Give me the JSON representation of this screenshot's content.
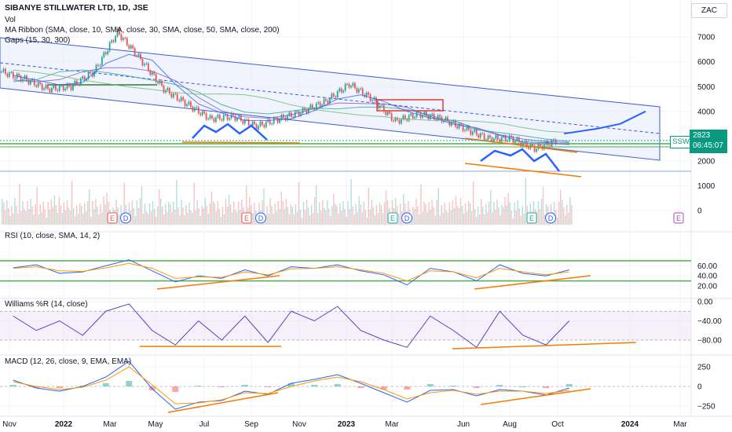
{
  "header": {
    "title": "SIBANYE STILLWATER LTD, 1D, JSE",
    "vol_label": "Vol",
    "ma_label": "MA Ribbon (SMA, close, 10, SMA, close, 30, SMA, close, 50, SMA, close, 200)",
    "gaps_label": "Gaps (15, 30, 300)",
    "currency": "ZAC"
  },
  "price_tag": {
    "ticker": "SSW",
    "price": "2823",
    "countdown": "06:45:07",
    "color": "#089981"
  },
  "colors": {
    "up": "#26a69a",
    "down": "#ef5350",
    "ma10": "#2962ff",
    "ma30": "#7e57c2",
    "ma50": "#26a69a",
    "ma200": "#66bb6a",
    "channel": "#3b5bdb",
    "trendline": "#f57c00",
    "rsi": "#2962ff",
    "rsi_ma": "#ff9800",
    "wr": "#5b3fc4",
    "macd": "#2962ff",
    "signal": "#ff9800"
  },
  "chart_data": [
    {
      "type": "candlestick",
      "title": "SIBANYE STILLWATER LTD, 1D, JSE",
      "x": [
        "2021-10",
        "2021-11",
        "2021-12",
        "2022-01",
        "2022-02",
        "2022-03",
        "2022-04",
        "2022-05",
        "2022-06",
        "2022-07",
        "2022-08",
        "2022-09",
        "2022-10",
        "2022-11",
        "2022-12",
        "2023-01",
        "2023-02",
        "2023-03",
        "2023-04",
        "2023-05",
        "2023-06",
        "2023-07",
        "2023-08",
        "2023-09",
        "2023-10"
      ],
      "close": [
        5600,
        5300,
        4900,
        5000,
        5600,
        7200,
        6100,
        4900,
        4300,
        3700,
        3800,
        3400,
        3700,
        4000,
        4400,
        5100,
        4500,
        3600,
        3900,
        3700,
        3300,
        2900,
        2900,
        2500,
        2823
      ],
      "projection": {
        "x": [
          "2023-10",
          "2023-11",
          "2023-12",
          "2024-01"
        ],
        "close": [
          3100,
          3300,
          3500,
          4000
        ]
      },
      "ylim": [
        0,
        7800
      ],
      "y_ticks": [
        0,
        1000,
        2000,
        3000,
        4000,
        5000,
        6000,
        7000
      ],
      "x_tick_labels": [
        "Nov",
        "2022",
        "Mar",
        "May",
        "Jul",
        "Sep",
        "Nov",
        "2023",
        "Mar",
        "Jun",
        "Aug",
        "Oct",
        "2024",
        "Mar"
      ],
      "last_price": 2823,
      "events": [
        "E",
        "D",
        "E",
        "D",
        "E",
        "D",
        "E",
        "D",
        "E"
      ]
    },
    {
      "type": "line",
      "title": "RSI (10, close, SMA, 14, 2)",
      "series": [
        {
          "values": [
            56,
            62,
            45,
            48,
            60,
            72,
            50,
            28,
            40,
            35,
            52,
            40,
            58,
            55,
            62,
            50,
            42,
            22,
            55,
            48,
            30,
            62,
            45,
            40,
            52
          ]
        },
        {
          "values": [
            55,
            58,
            50,
            49,
            56,
            65,
            55,
            35,
            38,
            37,
            48,
            42,
            54,
            55,
            58,
            52,
            45,
            30,
            50,
            48,
            36,
            55,
            48,
            42,
            48
          ]
        }
      ],
      "y_ticks": [
        20,
        40,
        60
      ],
      "y_tick_labels": [
        "20.00",
        "40.00",
        "60.00"
      ],
      "levels": [
        70,
        30
      ]
    },
    {
      "type": "line",
      "title": "Williams %R (14, close)",
      "values": [
        -30,
        -60,
        -40,
        -70,
        -20,
        -5,
        -60,
        -90,
        -40,
        -80,
        -30,
        -85,
        -20,
        -40,
        -10,
        -60,
        -80,
        -95,
        -30,
        -60,
        -95,
        -20,
        -70,
        -90,
        -40
      ],
      "y_ticks": [
        0,
        -40,
        -80
      ],
      "y_tick_labels": [
        "0.00",
        "−40.00",
        "−80.00"
      ],
      "band": [
        -20,
        -80
      ]
    },
    {
      "type": "line",
      "title": "MACD (12, 26, close, 9, EMA, EMA)",
      "series": [
        {
          "values": [
            80,
            -20,
            -60,
            0,
            120,
            320,
            -30,
            -290,
            -200,
            -180,
            -60,
            -100,
            40,
            90,
            150,
            40,
            -80,
            -200,
            -50,
            -40,
            -120,
            -40,
            -60,
            -110,
            -20
          ]
        },
        {
          "values": [
            60,
            0,
            -40,
            -10,
            80,
            250,
            20,
            -220,
            -210,
            -170,
            -80,
            -90,
            0,
            70,
            120,
            60,
            -40,
            -160,
            -80,
            -50,
            -100,
            -60,
            -60,
            -90,
            -50
          ]
        }
      ],
      "y_ticks": [
        250,
        0,
        -250
      ],
      "y_tick_labels": [
        "250",
        "0",
        "−250"
      ]
    }
  ]
}
